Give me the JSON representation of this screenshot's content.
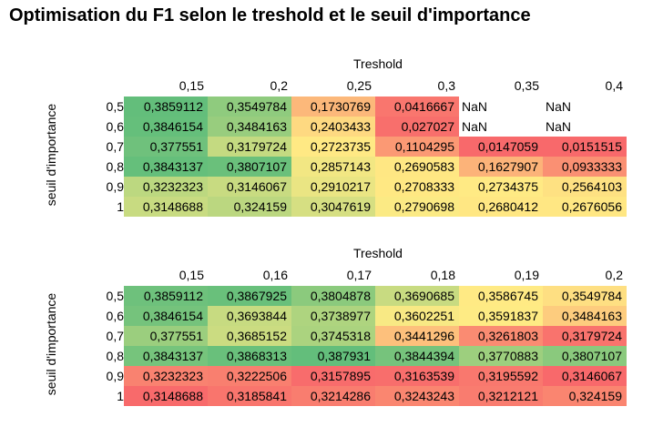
{
  "title": "Optimisation du F1 selon le treshold et le seuil d'importance",
  "chart_data": [
    {
      "type": "heatmap",
      "xlabel": "Treshold",
      "ylabel": "seuil d'importance",
      "x": [
        "0,15",
        "0,2",
        "0,25",
        "0,3",
        "0,35",
        "0,4"
      ],
      "y": [
        "0,5",
        "0,6",
        "0,7",
        "0,8",
        "0,9",
        "1"
      ],
      "cells": [
        [
          "0,3859112",
          "0,3549784",
          "0,1730769",
          "0,0416667",
          "NaN",
          "NaN"
        ],
        [
          "0,3846154",
          "0,3484163",
          "0,2403433",
          "0,027027",
          "NaN",
          "NaN"
        ],
        [
          "0,377551",
          "0,3179724",
          "0,2723735",
          "0,1104295",
          "0,0147059",
          "0,0151515"
        ],
        [
          "0,3843137",
          "0,3807107",
          "0,2857143",
          "0,2690583",
          "0,1627907",
          "0,0933333"
        ],
        [
          "0,3232323",
          "0,3146067",
          "0,2910217",
          "0,2708333",
          "0,2734375",
          "0,2564103"
        ],
        [
          "0,3148688",
          "0,324159",
          "0,3047619",
          "0,2790698",
          "0,2680412",
          "0,2676056"
        ]
      ],
      "color_scale": {
        "low": "#f8696b",
        "mid": "#ffeb84",
        "high": "#63be7b"
      }
    },
    {
      "type": "heatmap",
      "xlabel": "Treshold",
      "ylabel": "seuil d'importance",
      "x": [
        "0,15",
        "0,16",
        "0,17",
        "0,18",
        "0,19",
        "0,2"
      ],
      "y": [
        "0,5",
        "0,6",
        "0,7",
        "0,8",
        "0,9",
        "1"
      ],
      "cells": [
        [
          "0,3859112",
          "0,3867925",
          "0,3804878",
          "0,3690685",
          "0,3586745",
          "0,3549784"
        ],
        [
          "0,3846154",
          "0,3693844",
          "0,3738977",
          "0,3602251",
          "0,3591837",
          "0,3484163"
        ],
        [
          "0,377551",
          "0,3685152",
          "0,3745318",
          "0,3441296",
          "0,3261803",
          "0,3179724"
        ],
        [
          "0,3843137",
          "0,3868313",
          "0,387931",
          "0,3844394",
          "0,3770883",
          "0,3807107"
        ],
        [
          "0,3232323",
          "0,3222506",
          "0,3157895",
          "0,3163539",
          "0,3195592",
          "0,3146067"
        ],
        [
          "0,3148688",
          "0,3185841",
          "0,3214286",
          "0,3243243",
          "0,3212121",
          "0,324159"
        ]
      ],
      "color_scale": {
        "low": "#f8696b",
        "mid": "#ffeb84",
        "high": "#63be7b"
      }
    }
  ]
}
